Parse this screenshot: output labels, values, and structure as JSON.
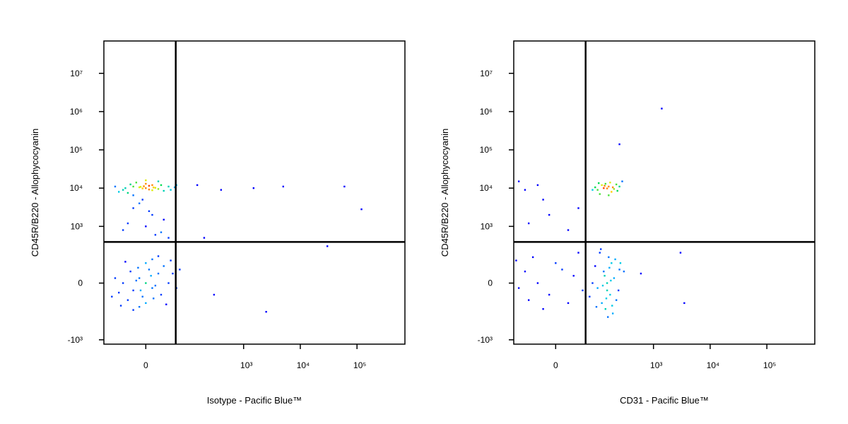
{
  "chart_data": [
    {
      "type": "scatter",
      "xlabel": "Isotype - Pacific Blue™",
      "ylabel": "CD45R/B220 - Allophycocyanin",
      "xlim": [
        -100,
        700000
      ],
      "ylim": [
        -1300,
        70000000
      ],
      "xticks": [
        0,
        {
          "value": 1000,
          "label": "10³"
        },
        {
          "value": 10000,
          "label": "10⁴"
        },
        {
          "value": 100000,
          "label": "10⁵"
        }
      ],
      "yticks": [
        {
          "value": -1000,
          "label": "-10³"
        },
        0,
        {
          "value": 1000,
          "label": "10³"
        },
        {
          "value": 10000,
          "label": "10⁴"
        },
        {
          "value": 100000,
          "label": "10⁵"
        },
        {
          "value": 1000000,
          "label": "10⁶"
        },
        {
          "value": 10000000,
          "label": "10⁷"
        }
      ],
      "gate": {
        "x": 58,
        "y": 390
      },
      "x": [
        -40,
        -20,
        0,
        10,
        20,
        -10,
        5,
        -5,
        15,
        -25,
        30,
        -50,
        40,
        -30,
        0,
        10,
        -15,
        25,
        -35,
        45,
        -60,
        55,
        0,
        -20,
        20,
        5,
        -8,
        12,
        -3,
        60,
        -20,
        10,
        0,
        -40,
        30,
        15,
        -10,
        25,
        -30,
        5,
        40,
        -5,
        0,
        -10,
        10,
        20,
        -20,
        5,
        -5,
        15,
        -15,
        30,
        -30,
        25,
        -25,
        0,
        0,
        40,
        -40,
        10,
        -10,
        50,
        -50,
        35,
        -35,
        60,
        -60,
        20,
        -20,
        45,
        -45,
        8,
        -8,
        12,
        -12,
        70,
        -70,
        150,
        400,
        1500,
        5000,
        60000,
        120000,
        300,
        2500,
        30000,
        200
      ],
      "y": [
        9000,
        11000,
        10000,
        12000,
        9500,
        10500,
        11500,
        9800,
        10200,
        12500,
        8500,
        8000,
        11000,
        7500,
        13000,
        8800,
        14000,
        12000,
        10000,
        9000,
        11000,
        10500,
        16000,
        6500,
        15000,
        9200,
        10800,
        10400,
        11200,
        12000,
        3000,
        2000,
        1000,
        800,
        1500,
        600,
        4000,
        700,
        1200,
        2500,
        500,
        5000,
        0,
        20,
        -20,
        40,
        -30,
        60,
        -60,
        -10,
        10,
        80,
        -80,
        -50,
        50,
        100,
        -100,
        0,
        0,
        130,
        -130,
        40,
        -40,
        -110,
        110,
        -20,
        20,
        160,
        -160,
        120,
        -120,
        30,
        -30,
        -70,
        70,
        60,
        -60,
        12000,
        9000,
        10000,
        11000,
        11000,
        2800,
        -50,
        -180,
        300,
        500
      ]
    },
    {
      "type": "scatter",
      "xlabel": "CD31 - Pacific Blue™",
      "ylabel": "CD45R/B220 - Allophycocyanin",
      "xlim": [
        -100,
        700000
      ],
      "ylim": [
        -1300,
        70000000
      ],
      "xticks": [
        0,
        {
          "value": 1000,
          "label": "10³"
        },
        {
          "value": 10000,
          "label": "10⁴"
        },
        {
          "value": 100000,
          "label": "10⁵"
        }
      ],
      "yticks": [
        {
          "value": -1000,
          "label": "-10³"
        },
        0,
        {
          "value": 1000,
          "label": "10³"
        },
        {
          "value": 10000,
          "label": "10⁴"
        },
        {
          "value": 100000,
          "label": "10⁵"
        },
        {
          "value": 1000000,
          "label": "10⁶"
        },
        {
          "value": 10000000,
          "label": "10⁷"
        }
      ],
      "gate": {
        "x": 58,
        "y": 390
      },
      "x": [
        100,
        130,
        160,
        200,
        120,
        180,
        140,
        90,
        220,
        150,
        110,
        250,
        170,
        80,
        190,
        135,
        230,
        160,
        105,
        280,
        -60,
        -30,
        -80,
        -20,
        -50,
        20,
        -10,
        40,
        150,
        130,
        170,
        120,
        180,
        200,
        100,
        160,
        140,
        220,
        90,
        250,
        110,
        190,
        150,
        135,
        165,
        145,
        175,
        125,
        210,
        95,
        80,
        240,
        260,
        155,
        115,
        300,
        70,
        185,
        -30,
        -60,
        -10,
        0,
        20,
        -80,
        -40,
        30,
        -20,
        40,
        -50,
        10,
        -90,
        50,
        1400,
        250,
        3000,
        3500,
        600
      ],
      "y": [
        9000,
        10000,
        11000,
        9500,
        12000,
        8000,
        13000,
        10500,
        12500,
        9800,
        7000,
        11000,
        14000,
        9000,
        10500,
        11500,
        8500,
        6500,
        13500,
        15000,
        9000,
        12000,
        15000,
        5000,
        1200,
        800,
        2000,
        3000,
        0,
        50,
        -50,
        -100,
        100,
        20,
        -20,
        150,
        -150,
        -80,
        80,
        60,
        200,
        -200,
        -30,
        30,
        70,
        -70,
        10,
        -10,
        130,
        -130,
        0,
        -30,
        100,
        -250,
        250,
        50,
        -60,
        -120,
        0,
        50,
        -50,
        100,
        -100,
        -20,
        150,
        30,
        -150,
        200,
        -80,
        60,
        120,
        -30,
        1200000,
        140000,
        200,
        -100,
        40
      ]
    }
  ]
}
